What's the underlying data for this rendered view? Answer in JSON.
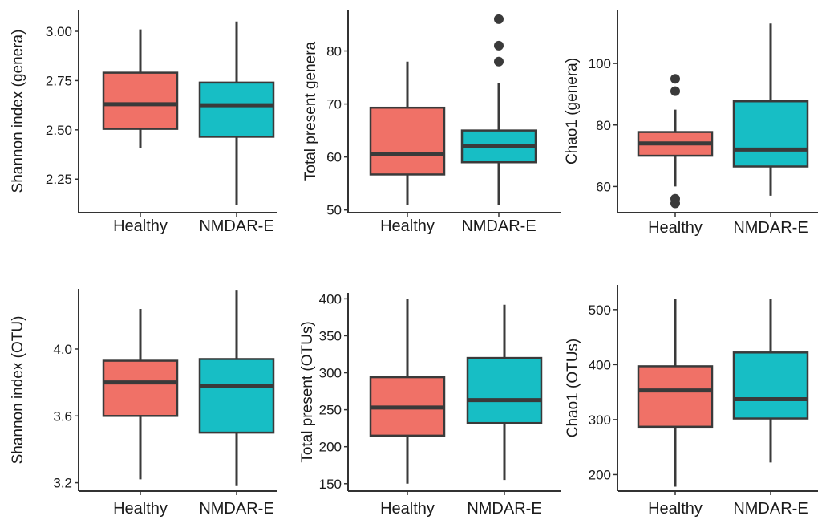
{
  "colors": {
    "healthy": "#f07167",
    "nmdar": "#17bec5",
    "line": "#3a3a3a"
  },
  "chart_data": [
    {
      "type": "box",
      "ylabel": "Shannon index (genera)",
      "categories": [
        "Healthy",
        "NMDAR-E"
      ],
      "yticks": [
        "2.25",
        "2.50",
        "2.75",
        "3.00"
      ],
      "ylim": [
        2.08,
        3.11
      ],
      "boxes": [
        {
          "whisker_low": 2.41,
          "q1": 2.505,
          "median": 2.63,
          "q3": 2.79,
          "whisker_high": 3.01,
          "outliers": []
        },
        {
          "whisker_low": 2.12,
          "q1": 2.465,
          "median": 2.625,
          "q3": 2.74,
          "whisker_high": 3.05,
          "outliers": []
        }
      ]
    },
    {
      "type": "box",
      "ylabel": "Total present genera",
      "categories": [
        "Healthy",
        "NMDAR-E"
      ],
      "yticks": [
        "50",
        "60",
        "70",
        "80"
      ],
      "ylim": [
        49.5,
        87.8
      ],
      "boxes": [
        {
          "whisker_low": 51,
          "q1": 56.7,
          "median": 60.5,
          "q3": 69.3,
          "whisker_high": 78,
          "outliers": []
        },
        {
          "whisker_low": 51,
          "q1": 59,
          "median": 62,
          "q3": 65,
          "whisker_high": 74,
          "outliers": [
            78,
            81,
            86
          ]
        }
      ]
    },
    {
      "type": "box",
      "ylabel": "Chao1 (genera)",
      "categories": [
        "Healthy",
        "NMDAR-E"
      ],
      "yticks": [
        "60",
        "80",
        "100"
      ],
      "ylim": [
        51.5,
        117.5
      ],
      "boxes": [
        {
          "whisker_low": 60,
          "q1": 70,
          "median": 74,
          "q3": 77.7,
          "whisker_high": 85,
          "outliers": [
            54.5,
            56,
            91,
            95
          ]
        },
        {
          "whisker_low": 57,
          "q1": 66.5,
          "median": 72,
          "q3": 87.7,
          "whisker_high": 113,
          "outliers": []
        }
      ]
    },
    {
      "type": "box",
      "ylabel": "Shannon index (OTU)",
      "categories": [
        "Healthy",
        "NMDAR-E"
      ],
      "yticks": [
        "3.2",
        "3.6",
        "4.0"
      ],
      "ylim": [
        3.15,
        4.36
      ],
      "boxes": [
        {
          "whisker_low": 3.22,
          "q1": 3.6,
          "median": 3.8,
          "q3": 3.93,
          "whisker_high": 4.24,
          "outliers": []
        },
        {
          "whisker_low": 3.18,
          "q1": 3.5,
          "median": 3.78,
          "q3": 3.94,
          "whisker_high": 4.35,
          "outliers": []
        }
      ]
    },
    {
      "type": "box",
      "ylabel": "Total present (OTUs)",
      "categories": [
        "Healthy",
        "NMDAR-E"
      ],
      "yticks": [
        "150",
        "200",
        "250",
        "300",
        "350",
        "400"
      ],
      "ylim": [
        140,
        408
      ],
      "boxes": [
        {
          "whisker_low": 150,
          "q1": 215,
          "median": 253,
          "q3": 294,
          "whisker_high": 400,
          "outliers": []
        },
        {
          "whisker_low": 155,
          "q1": 232,
          "median": 263,
          "q3": 320,
          "whisker_high": 392,
          "outliers": []
        }
      ]
    },
    {
      "type": "box",
      "ylabel": "Chao1 (OTUs)",
      "categories": [
        "Healthy",
        "NMDAR-E"
      ],
      "yticks": [
        "200",
        "300",
        "400",
        "500"
      ],
      "ylim": [
        170,
        545
      ],
      "boxes": [
        {
          "whisker_low": 178,
          "q1": 287,
          "median": 353,
          "q3": 397,
          "whisker_high": 520,
          "outliers": []
        },
        {
          "whisker_low": 222,
          "q1": 302,
          "median": 337,
          "q3": 422,
          "whisker_high": 520,
          "outliers": []
        }
      ]
    }
  ]
}
